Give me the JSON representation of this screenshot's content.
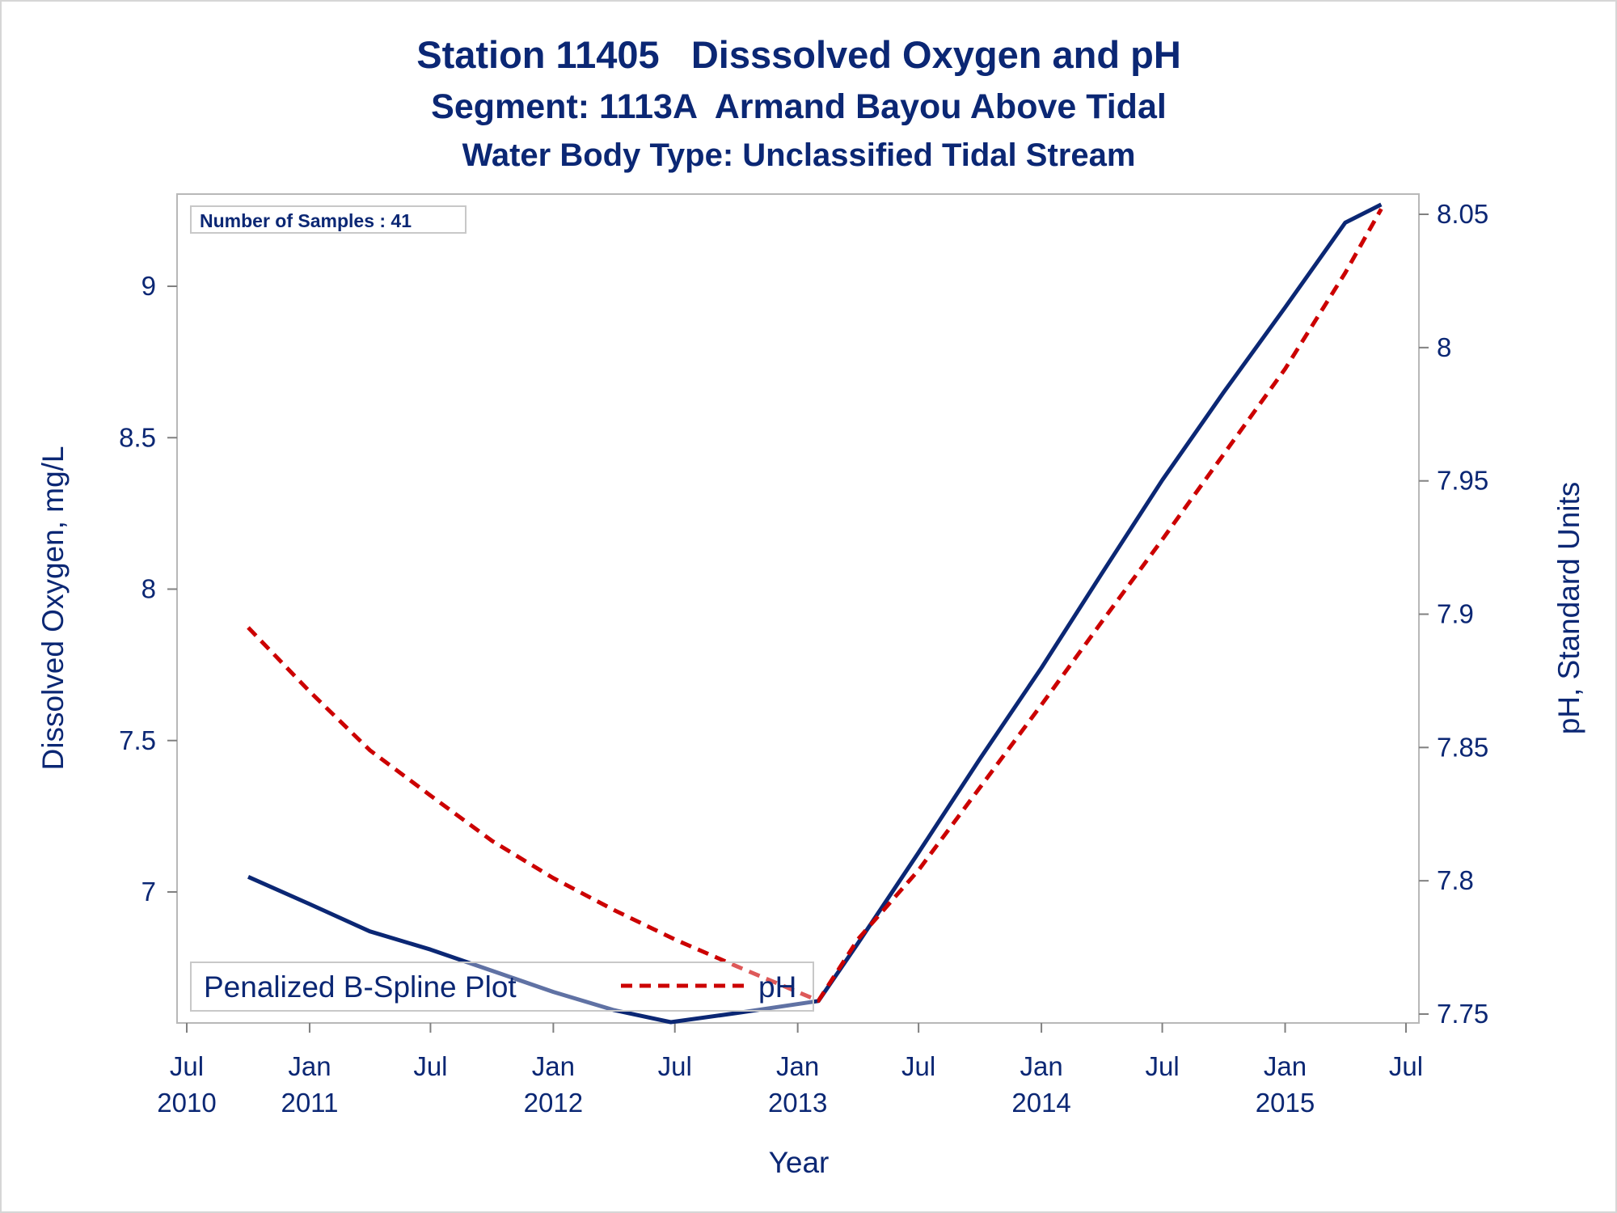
{
  "colors": {
    "text": "#0b2774",
    "do_line": "#0b2774",
    "ph_line": "#cc0000",
    "frame": "#b8b8b8",
    "border": "#d6d6d6"
  },
  "titles": {
    "line1": "Station 11405   Disssolved Oxygen and pH",
    "line2": "Segment: 1113A  Armand Bayou Above Tidal",
    "line3": "Water Body Type: Unclassified Tidal Stream"
  },
  "inset_label": "Number of Samples : 41",
  "legend": {
    "do_label": "Penalized B-Spline Plot",
    "ph_label": "pH",
    "placement": "bottom-left"
  },
  "chart_data": {
    "type": "line",
    "xlabel": "Year",
    "ylabel": "Dissolved Oxygen, mg/L",
    "y2label": "pH, Standard Units",
    "xlim": [
      "2010-07-01",
      "2015-07-01"
    ],
    "ylim": [
      6.58,
      9.25
    ],
    "y2lim": [
      7.745,
      8.058
    ],
    "x_ticks": [
      {
        "date": "2010-07-01",
        "month": "Jul",
        "year": "2010"
      },
      {
        "date": "2011-01-01",
        "month": "Jan",
        "year": "2011"
      },
      {
        "date": "2011-07-01",
        "month": "Jul",
        "year": ""
      },
      {
        "date": "2012-01-01",
        "month": "Jan",
        "year": "2012"
      },
      {
        "date": "2012-07-01",
        "month": "Jul",
        "year": ""
      },
      {
        "date": "2013-01-01",
        "month": "Jan",
        "year": "2013"
      },
      {
        "date": "2013-07-01",
        "month": "Jul",
        "year": ""
      },
      {
        "date": "2014-01-01",
        "month": "Jan",
        "year": "2014"
      },
      {
        "date": "2014-07-01",
        "month": "Jul",
        "year": ""
      },
      {
        "date": "2015-01-01",
        "month": "Jan",
        "year": "2015"
      },
      {
        "date": "2015-07-01",
        "month": "Jul",
        "year": ""
      }
    ],
    "y_ticks": [
      "7",
      "7.5",
      "8",
      "8.5",
      "9"
    ],
    "y2_ticks": [
      "7.75",
      "7.8",
      "7.85",
      "7.9",
      "7.95",
      "8",
      "8.05"
    ],
    "series": [
      {
        "name": "Penalized B-Spline Plot",
        "axis": "left",
        "style": "solid",
        "color": "#0b2774",
        "x": [
          "2010-10-01",
          "2011-01-01",
          "2011-04-01",
          "2011-07-01",
          "2011-10-01",
          "2012-01-01",
          "2012-04-01",
          "2012-06-25",
          "2012-10-01",
          "2013-02-01",
          "2013-04-01",
          "2013-07-01",
          "2013-10-01",
          "2014-01-01",
          "2014-04-01",
          "2014-07-01",
          "2014-10-01",
          "2015-01-01",
          "2015-04-01",
          "2015-05-25"
        ],
        "values": [
          7.05,
          6.96,
          6.87,
          6.81,
          6.74,
          6.67,
          6.61,
          6.57,
          6.6,
          6.64,
          6.83,
          7.13,
          7.44,
          7.74,
          8.05,
          8.36,
          8.65,
          8.93,
          9.21,
          9.27
        ]
      },
      {
        "name": "pH",
        "axis": "right",
        "style": "dashed",
        "color": "#cc0000",
        "x": [
          "2010-10-01",
          "2011-01-01",
          "2011-04-01",
          "2011-07-01",
          "2011-10-01",
          "2012-01-01",
          "2012-04-01",
          "2012-07-01",
          "2012-10-01",
          "2013-02-01",
          "2013-04-01",
          "2013-07-01",
          "2013-10-01",
          "2014-01-01",
          "2014-04-01",
          "2014-07-01",
          "2014-10-01",
          "2015-01-01",
          "2015-04-01",
          "2015-05-25"
        ],
        "values": [
          7.895,
          7.871,
          7.849,
          7.832,
          7.815,
          7.801,
          7.789,
          7.778,
          7.768,
          7.755,
          7.778,
          7.804,
          7.835,
          7.866,
          7.897,
          7.928,
          7.96,
          7.992,
          8.028,
          8.052
        ]
      }
    ]
  }
}
